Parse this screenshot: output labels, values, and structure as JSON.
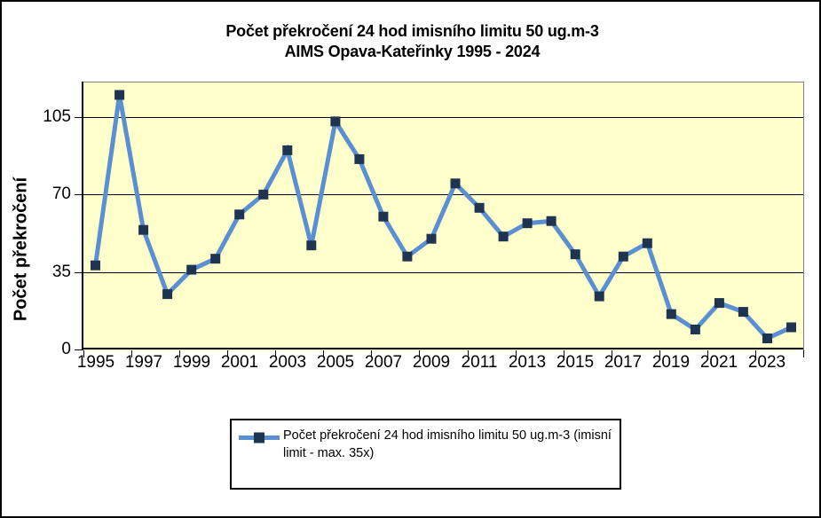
{
  "figure": {
    "title_line1": "Počet překročení 24 hod imisního limitu 50 ug.m-3",
    "title_line2": "AIMS Opava-Kateřinky 1995 - 2024"
  },
  "legend": {
    "label": "Počet překročení 24 hod imisního limitu 50 ug.m-3 (imisní limit - max. 35x)"
  },
  "colors": {
    "plot_background": "#FFFFCC",
    "line": "#5A8FD2",
    "marker": "#1E3450",
    "gridline": "#000000",
    "plot_border": "#808080",
    "axis": "#000000"
  },
  "chart_data": {
    "type": "line",
    "title": "Počet překročení 24 hod imisního limitu 50 ug.m-3",
    "subtitle": "AIMS Opava-Kateřinky 1995 - 2024",
    "xlabel": "",
    "ylabel": "Počet překročení",
    "x": [
      1995,
      1996,
      1997,
      1998,
      1999,
      2000,
      2001,
      2002,
      2003,
      2004,
      2005,
      2006,
      2007,
      2008,
      2009,
      2010,
      2011,
      2012,
      2013,
      2014,
      2015,
      2016,
      2017,
      2018,
      2019,
      2020,
      2021,
      2022,
      2023,
      2024
    ],
    "series": [
      {
        "name": "Počet překročení 24 hod imisního limitu 50 ug.m-3 (imisní limit - max. 35x)",
        "values": [
          38,
          115,
          54,
          25,
          36,
          41,
          61,
          70,
          90,
          47,
          103,
          86,
          60,
          42,
          50,
          75,
          64,
          51,
          57,
          58,
          43,
          24,
          42,
          48,
          16,
          9,
          21,
          17,
          5,
          10
        ]
      }
    ],
    "yticks": [
      0,
      35,
      70,
      105
    ],
    "xtick_labels": [
      "1995",
      "1997",
      "1999",
      "2001",
      "2003",
      "2005",
      "2007",
      "2009",
      "2011",
      "2013",
      "2015",
      "2017",
      "2019",
      "2021",
      "2023"
    ],
    "ylim": [
      0,
      121
    ],
    "grid": "horizontal-major",
    "legend_position": "bottom",
    "marker": "square"
  }
}
